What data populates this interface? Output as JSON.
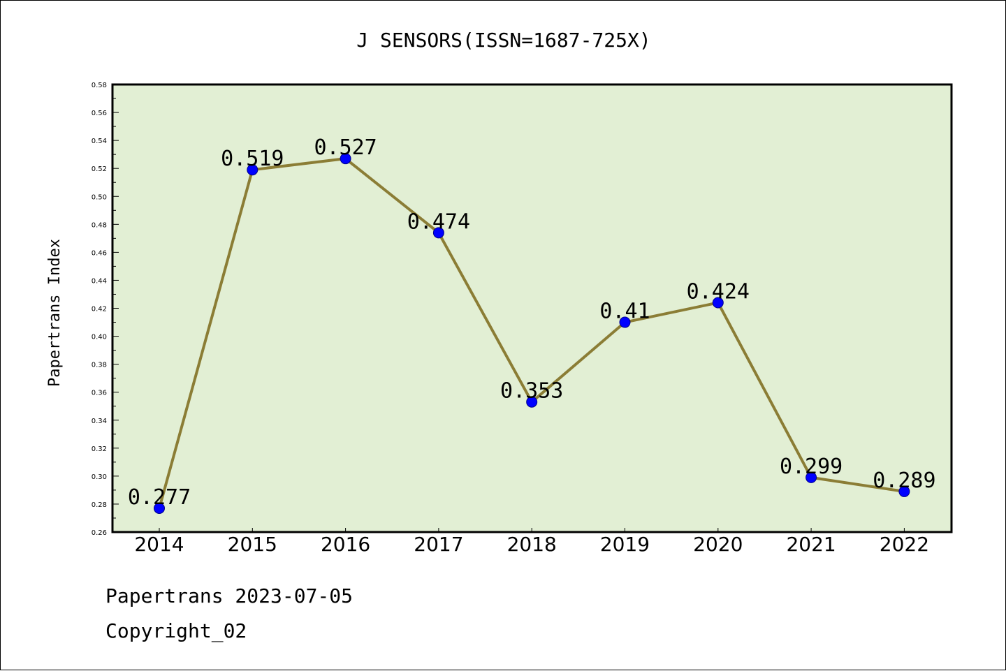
{
  "chart_data": {
    "type": "line",
    "title": "J SENSORS(ISSN=1687-725X)",
    "xlabel": "",
    "ylabel": "Papertrans Index",
    "categories": [
      "2014",
      "2015",
      "2016",
      "2017",
      "2018",
      "2019",
      "2020",
      "2021",
      "2022"
    ],
    "values": [
      0.277,
      0.519,
      0.527,
      0.474,
      0.353,
      0.41,
      0.424,
      0.299,
      0.289
    ],
    "data_labels": [
      "0.277",
      "0.519",
      "0.527",
      "0.474",
      "0.353",
      "0.41",
      "0.424",
      "0.299",
      "0.289"
    ],
    "ylim": [
      0.26,
      0.58
    ],
    "yticks": [
      "0.26",
      "0.28",
      "0.30",
      "0.32",
      "0.34",
      "0.36",
      "0.38",
      "0.40",
      "0.42",
      "0.44",
      "0.46",
      "0.48",
      "0.50",
      "0.52",
      "0.54",
      "0.56",
      "0.58"
    ],
    "grid": false,
    "colors": {
      "line": "#8b7d35",
      "marker": "#0000ff",
      "plot_bg": "#e2efd4"
    }
  },
  "footer": {
    "line1": "Papertrans 2023-07-05",
    "line2": "Copyright_02"
  }
}
